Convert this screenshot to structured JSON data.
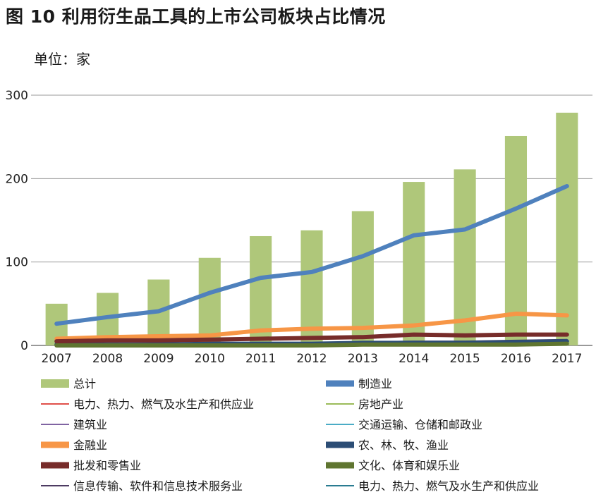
{
  "title": "图 10 利用衍生品工具的上市公司板块占比情况",
  "unit": "单位：家",
  "chart_data": {
    "type": "bar",
    "categories": [
      "2007",
      "2008",
      "2009",
      "2010",
      "2011",
      "2012",
      "2013",
      "2014",
      "2015",
      "2016",
      "2017"
    ],
    "ylim": [
      0,
      300
    ],
    "yticks": [
      0,
      100,
      200,
      300
    ],
    "grid": true,
    "legend_position": "bottom",
    "series": [
      {
        "name": "总计",
        "kind": "bar",
        "color": "#afc77a",
        "width": 0,
        "values": [
          50,
          63,
          79,
          105,
          131,
          138,
          161,
          196,
          211,
          251,
          279
        ]
      },
      {
        "name": "制造业",
        "kind": "line",
        "color": "#4f81bd",
        "width": 6,
        "values": [
          26,
          34,
          41,
          63,
          81,
          88,
          107,
          132,
          139,
          164,
          191
        ]
      },
      {
        "name": "电力、热力、燃气及水生产和供应业",
        "kind": "line",
        "color": "#e0504a",
        "width": 2,
        "values": [
          1,
          1,
          1,
          1,
          1,
          1,
          1,
          1,
          2,
          2,
          3
        ]
      },
      {
        "name": "房地产业",
        "kind": "line",
        "color": "#9bbb59",
        "width": 2,
        "values": [
          0,
          0,
          0,
          1,
          1,
          1,
          1,
          1,
          1,
          2,
          2
        ]
      },
      {
        "name": "建筑业",
        "kind": "line",
        "color": "#8064a2",
        "width": 2,
        "values": [
          0,
          0,
          1,
          1,
          1,
          1,
          1,
          2,
          2,
          2,
          3
        ]
      },
      {
        "name": "交通运输、仓储和邮政业",
        "kind": "line",
        "color": "#4bacc6",
        "width": 2,
        "values": [
          1,
          1,
          1,
          2,
          2,
          2,
          2,
          2,
          2,
          3,
          3
        ]
      },
      {
        "name": "金融业",
        "kind": "line",
        "color": "#f79646",
        "width": 6,
        "values": [
          8,
          10,
          11,
          12,
          18,
          20,
          21,
          24,
          30,
          38,
          36
        ]
      },
      {
        "name": "农、林、牧、渔业",
        "kind": "line",
        "color": "#2c4d75",
        "width": 6,
        "values": [
          1,
          1,
          1,
          2,
          2,
          2,
          3,
          3,
          3,
          4,
          5
        ]
      },
      {
        "name": "批发和零售业",
        "kind": "line",
        "color": "#772c2a",
        "width": 6,
        "values": [
          5,
          6,
          6,
          7,
          8,
          9,
          10,
          13,
          12,
          13,
          13
        ]
      },
      {
        "name": "文化、体育和娱乐业",
        "kind": "line",
        "color": "#5f7530",
        "width": 6,
        "values": [
          0,
          0,
          0,
          0,
          0,
          0,
          1,
          1,
          1,
          1,
          2
        ]
      },
      {
        "name": "信息传输、软件和信息技术服务业",
        "kind": "line",
        "color": "#4d3b62",
        "width": 2,
        "values": [
          2,
          2,
          3,
          3,
          3,
          3,
          4,
          5,
          5,
          6,
          7
        ]
      },
      {
        "name": "电力、热力、燃气及水生产和供应业",
        "kind": "line",
        "color": "#2a7c91",
        "width": 2,
        "values": [
          2,
          2,
          2,
          2,
          2,
          2,
          3,
          3,
          4,
          4,
          4
        ]
      }
    ]
  }
}
